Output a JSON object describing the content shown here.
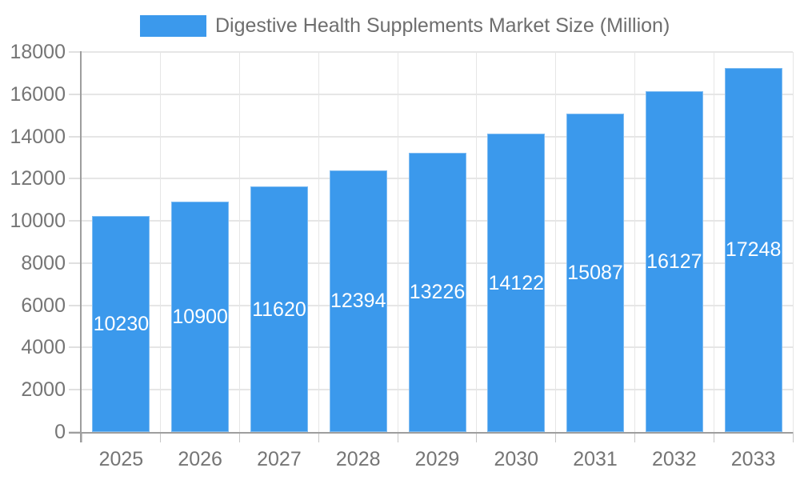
{
  "chart_data": {
    "type": "bar",
    "title": "Digestive Health Supplements Market Size (Million)",
    "legend": {
      "label": "Digestive Health Supplements Market Size (Million)",
      "position": "top"
    },
    "categories": [
      "2025",
      "2026",
      "2027",
      "2028",
      "2029",
      "2030",
      "2031",
      "2032",
      "2033"
    ],
    "values": [
      10230,
      10900,
      11620,
      12394,
      13226,
      14122,
      15087,
      16127,
      17248
    ],
    "xlabel": "",
    "ylabel": "",
    "ylim": [
      0,
      18000
    ],
    "ytick_step": 2000,
    "grid": true,
    "value_labels": "inside-middle",
    "colors": {
      "bar": "#3b99ec",
      "bar_border": "rgba(255,255,255,0.35)",
      "bar_value_label": "#ffffff",
      "grid": "#e6e6e6",
      "axis_line": "#9e9e9e",
      "y_tick": "#e0e0e0",
      "x_tick": "#c6c6c6",
      "axis_text": "#757575",
      "legend_text": "#6e6e6e",
      "background": "#ffffff"
    }
  }
}
